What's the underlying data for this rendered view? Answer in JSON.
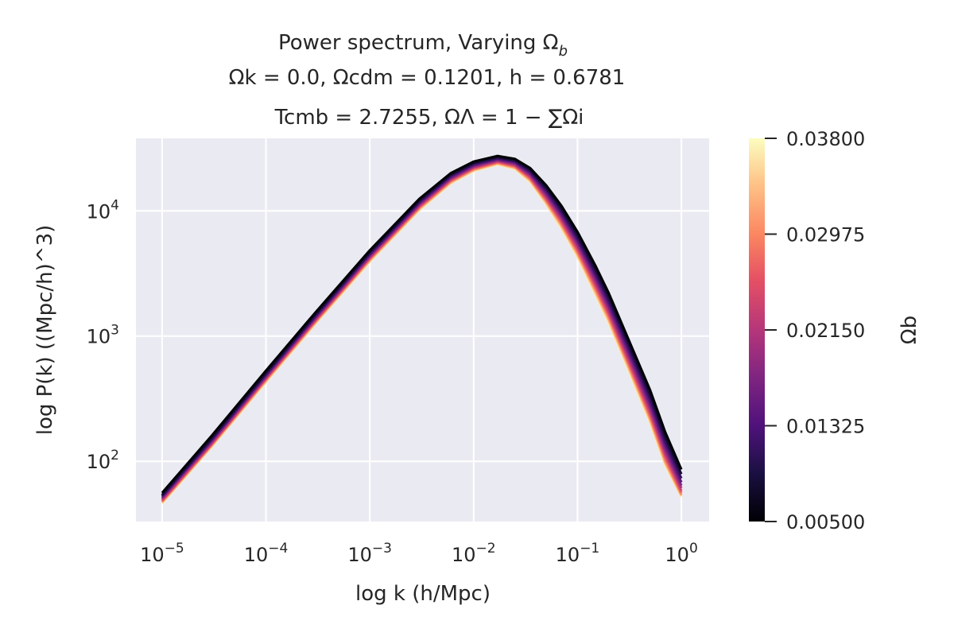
{
  "chart_data": {
    "type": "line",
    "title_lines": [
      [
        "Power spectrum, Varying Ω",
        "b"
      ],
      "Ωk = 0.0, Ωcdm = 0.1201, h = 0.6781",
      "Tcmb = 2.7255, ΩΛ = 1 − ∑Ωi"
    ],
    "xlabel": "log k  (h/Mpc)",
    "ylabel": "log P(k)  ((Mpc/h)^3)",
    "xscale": "log",
    "yscale": "log",
    "xlim": [
      5.6e-06,
      1.85
    ],
    "ylim": [
      33,
      38000
    ],
    "xticks": [
      {
        "value": 1e-05,
        "label": "10^-5"
      },
      {
        "value": 0.0001,
        "label": "10^-4"
      },
      {
        "value": 0.001,
        "label": "10^-3"
      },
      {
        "value": 0.01,
        "label": "10^-2"
      },
      {
        "value": 0.1,
        "label": "10^-1"
      },
      {
        "value": 1,
        "label": "10^0"
      }
    ],
    "yticks": [
      {
        "value": 100,
        "label": "10^2"
      },
      {
        "value": 1000,
        "label": "10^3"
      },
      {
        "value": 10000,
        "label": "10^4"
      }
    ],
    "grid": true,
    "colormap": "magma",
    "colorbar": {
      "label": "Ωb",
      "min": 0.005,
      "max": 0.038,
      "ticks": [
        "0.00500",
        "0.01325",
        "0.02150",
        "0.02975",
        "0.03800"
      ]
    },
    "series_param": [
      0.005,
      0.0083,
      0.0116,
      0.0149,
      0.0182,
      0.0215,
      0.0248,
      0.0281,
      0.0314,
      0.0347,
      0.038
    ],
    "series_endpoints": {
      "first": {
        "omega_b": 0.005,
        "p_at_k_1e-5": 56,
        "peak_k": 0.017,
        "peak_p": 27500,
        "p_at_k_1": 86
      },
      "last": {
        "omega_b": 0.038,
        "p_at_k_1e-5": 46,
        "peak_k": 0.017,
        "peak_p": 23500,
        "p_at_k_1": 52
      }
    },
    "x": [
      1e-05,
      3e-05,
      0.0001,
      0.0003,
      0.001,
      0.003,
      0.006,
      0.01,
      0.017,
      0.025,
      0.035,
      0.05,
      0.07,
      0.1,
      0.15,
      0.2,
      0.3,
      0.5,
      0.7,
      1.0
    ],
    "series": [
      {
        "values": [
          56,
          160,
          530,
          1550,
          4850,
          12500,
          20000,
          24800,
          27500,
          26000,
          22000,
          16000,
          11000,
          6800,
          3600,
          2200,
          1000,
          370,
          170,
          86
        ]
      },
      {
        "values": [
          54,
          154,
          510,
          1500,
          4700,
          12150,
          19500,
          24200,
          26900,
          25400,
          21300,
          15300,
          10400,
          6400,
          3350,
          2050,
          930,
          340,
          155,
          79
        ]
      },
      {
        "values": [
          53,
          150,
          498,
          1460,
          4580,
          11850,
          19050,
          23700,
          26400,
          24900,
          20700,
          14700,
          9900,
          6050,
          3150,
          1910,
          865,
          315,
          143,
          73
        ]
      },
      {
        "values": [
          52,
          147,
          487,
          1430,
          4480,
          11600,
          18650,
          23250,
          25950,
          24400,
          20100,
          14100,
          9450,
          5750,
          2960,
          1790,
          810,
          292,
          133,
          68
        ]
      },
      {
        "values": [
          51,
          144,
          477,
          1400,
          4390,
          11350,
          18300,
          22850,
          25550,
          23950,
          19600,
          13600,
          9050,
          5480,
          2800,
          1690,
          760,
          273,
          124,
          64
        ]
      },
      {
        "values": [
          50,
          141,
          468,
          1370,
          4300,
          11120,
          17950,
          22450,
          25150,
          23500,
          19100,
          13100,
          8700,
          5220,
          2650,
          1600,
          718,
          257,
          117,
          61
        ]
      },
      {
        "values": [
          49,
          138,
          459,
          1345,
          4220,
          10900,
          17650,
          22100,
          24800,
          23100,
          18650,
          12650,
          8350,
          4990,
          2520,
          1520,
          681,
          243,
          111,
          58
        ]
      },
      {
        "values": [
          48,
          136,
          451,
          1320,
          4140,
          10700,
          17350,
          21750,
          24450,
          22700,
          18200,
          12250,
          8050,
          4780,
          2400,
          1450,
          648,
          231,
          105,
          56
        ]
      },
      {
        "values": [
          47.5,
          134,
          443,
          1298,
          4070,
          10500,
          17050,
          21400,
          24100,
          22300,
          17800,
          11900,
          7750,
          4590,
          2290,
          1385,
          619,
          220,
          100,
          54
        ]
      },
      {
        "values": [
          46.8,
          132,
          436,
          1277,
          4000,
          10320,
          16800,
          21100,
          23800,
          21950,
          17400,
          11550,
          7500,
          4420,
          2190,
          1325,
          592,
          211,
          96,
          53
        ]
      },
      {
        "values": [
          46,
          130,
          429,
          1256,
          3930,
          10150,
          16550,
          20800,
          23500,
          21600,
          17000,
          11250,
          7250,
          4260,
          2100,
          1270,
          568,
          202,
          92,
          52
        ]
      }
    ]
  }
}
